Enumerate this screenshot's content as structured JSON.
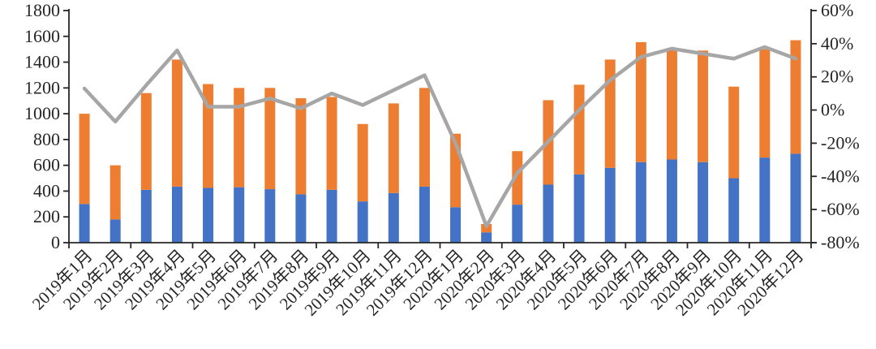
{
  "chart_data": {
    "type": "bar",
    "subtype": "stacked-bars-with-line-overlay",
    "title": "",
    "legend": "none",
    "grid": "off",
    "categories": [
      "2019年1月",
      "2019年2月",
      "2019年3月",
      "2019年4月",
      "2019年5月",
      "2019年6月",
      "2019年7月",
      "2019年8月",
      "2019年9月",
      "2019年10月",
      "2019年11月",
      "2019年12月",
      "2020年1月",
      "2020年2月",
      "2020年3月",
      "2020年4月",
      "2020年5月",
      "2020年6月",
      "2020年7月",
      "2020年8月",
      "2020年9月",
      "2020年10月",
      "2020年11月",
      "2020年12月"
    ],
    "series": [
      {
        "name": "blue-bottom-segment",
        "chart": "bar",
        "stack": "total",
        "axis": "left",
        "color": "#4472C4",
        "values": [
          300,
          180,
          410,
          435,
          425,
          430,
          415,
          375,
          410,
          320,
          385,
          435,
          275,
          80,
          295,
          450,
          530,
          580,
          625,
          645,
          625,
          500,
          660,
          690
        ]
      },
      {
        "name": "orange-top-segment",
        "chart": "bar",
        "stack": "total",
        "axis": "left",
        "color": "#ED7D31",
        "values": [
          700,
          420,
          750,
          985,
          805,
          770,
          785,
          745,
          720,
          600,
          695,
          765,
          570,
          65,
          415,
          655,
          695,
          840,
          930,
          860,
          865,
          710,
          840,
          880
        ]
      },
      {
        "name": "gray-growth-line",
        "chart": "line",
        "axis": "right",
        "color": "#A6A6A6",
        "unit": "%",
        "values": [
          13,
          -7,
          15,
          36,
          2,
          2,
          7,
          1,
          10,
          3,
          12,
          21,
          -20,
          -70,
          -38,
          -19,
          0,
          18,
          32,
          37,
          34,
          31,
          38,
          31
        ]
      }
    ],
    "left_axis": {
      "min": 0,
      "max": 1800,
      "step": 200,
      "tick_labels": [
        "0",
        "200",
        "400",
        "600",
        "800",
        "1000",
        "1200",
        "1400",
        "1600",
        "1800"
      ]
    },
    "right_axis": {
      "min": -80,
      "max": 60,
      "step": 20,
      "unit": "%",
      "tick_labels": [
        "-80%",
        "-60%",
        "-40%",
        "-20%",
        "0%",
        "20%",
        "40%",
        "60%"
      ]
    },
    "bar_totals": [
      1000,
      600,
      1160,
      1420,
      1230,
      1200,
      1200,
      1120,
      1130,
      920,
      1080,
      1200,
      845,
      145,
      710,
      1105,
      1225,
      1420,
      1555,
      1505,
      1490,
      1210,
      1500,
      1570
    ],
    "axis_color": "#262626",
    "label_color": "#262626",
    "background_color": "#ffffff"
  }
}
